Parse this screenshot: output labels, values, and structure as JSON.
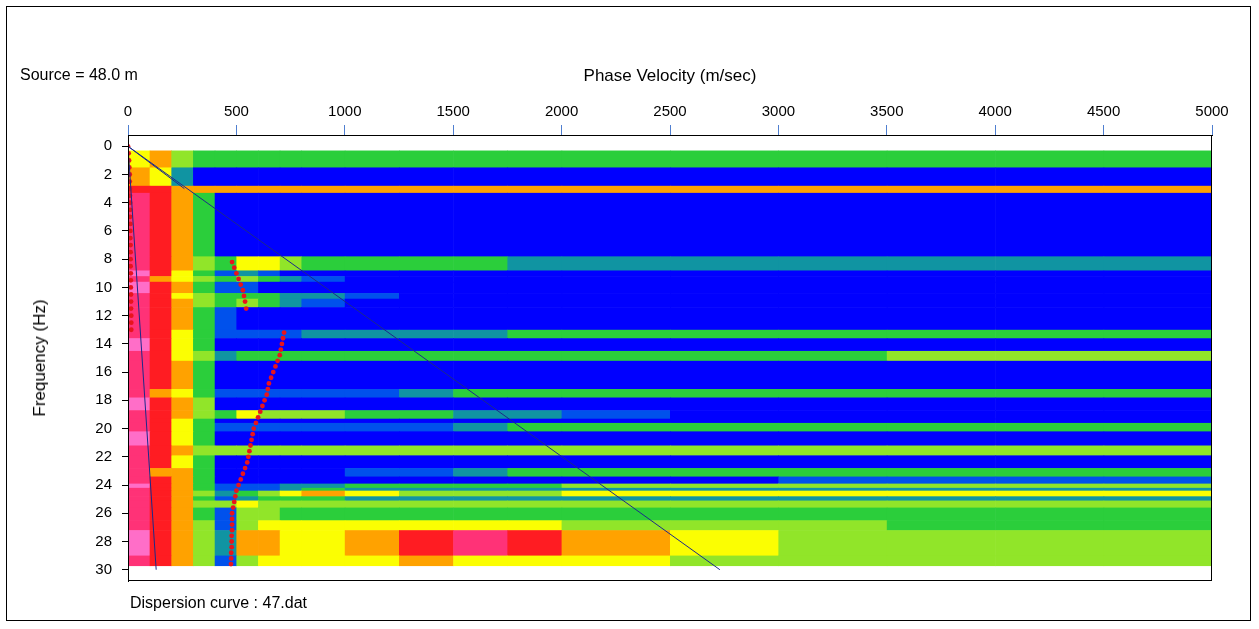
{
  "chart_data": {
    "type": "heatmap",
    "title": "Source = 48.0 m",
    "x_label": "Phase Velocity (m/sec)",
    "y_label": "Frequency (Hz)",
    "annotations": [
      "Dispersion curve : 47.dat"
    ],
    "xlim": [
      0,
      5000
    ],
    "xticks": [
      0,
      500,
      1000,
      1500,
      2000,
      2500,
      3000,
      3500,
      4000,
      4500,
      5000
    ],
    "ylim": [
      -0.8,
      30.8
    ],
    "yticks": [
      0,
      2,
      4,
      6,
      8,
      10,
      12,
      14,
      16,
      18,
      20,
      22,
      24,
      26,
      28,
      30
    ],
    "grid": false,
    "heatmap": {
      "zlim": [
        0,
        9
      ],
      "x_edges": [
        0,
        100,
        200,
        300,
        400,
        500,
        600,
        700,
        800,
        1000,
        1250,
        1500,
        1750,
        2000,
        2500,
        3000,
        3500,
        4000,
        4500,
        5000
      ],
      "y_edges": [
        0.3,
        1.5,
        2.8,
        3.3,
        7.8,
        8.8,
        9.2,
        9.6,
        10.4,
        10.8,
        11.4,
        13.0,
        13.6,
        14.5,
        15.2,
        17.2,
        17.8,
        18.7,
        19.3,
        19.6,
        20.2,
        21.2,
        21.9,
        22.8,
        23.4,
        23.9,
        24.2,
        24.4,
        24.8,
        25.1,
        25.6,
        26.5,
        27.2,
        29.0,
        29.7
      ],
      "cells": [
        [
          5,
          6,
          4,
          3,
          3,
          3,
          3,
          3,
          3,
          3,
          3,
          3,
          3,
          3,
          3,
          3,
          3,
          3,
          3
        ],
        [
          6,
          5,
          2,
          0,
          0,
          0,
          0,
          0,
          0,
          0,
          0,
          0,
          0,
          0,
          0,
          0,
          0,
          0,
          0
        ],
        [
          7,
          7,
          6,
          6,
          6,
          6,
          6,
          6,
          6,
          6,
          6,
          6,
          6,
          6,
          6,
          6,
          6,
          6,
          6
        ],
        [
          8,
          7,
          6,
          3,
          0,
          0,
          0,
          0,
          0,
          0,
          0,
          0,
          0,
          0,
          0,
          0,
          0,
          0,
          0
        ],
        [
          8,
          7,
          6,
          4,
          3,
          5,
          5,
          4,
          3,
          3,
          3,
          3,
          2,
          2,
          2,
          2,
          2,
          2,
          2
        ],
        [
          9,
          7,
          5,
          3,
          1,
          2,
          1,
          0,
          0,
          0,
          0,
          0,
          0,
          0,
          0,
          0,
          0,
          0,
          0
        ],
        [
          8,
          6,
          5,
          4,
          3,
          4,
          3,
          2,
          1,
          0,
          0,
          0,
          0,
          0,
          0,
          0,
          0,
          0,
          0
        ],
        [
          9,
          7,
          6,
          3,
          1,
          1,
          0,
          0,
          0,
          0,
          0,
          0,
          0,
          0,
          0,
          0,
          0,
          0,
          0
        ],
        [
          8,
          7,
          5,
          4,
          3,
          3,
          3,
          2,
          2,
          1,
          0,
          0,
          0,
          0,
          0,
          0,
          0,
          0,
          0
        ],
        [
          8,
          7,
          6,
          4,
          3,
          4,
          3,
          2,
          1,
          0,
          0,
          0,
          0,
          0,
          0,
          0,
          0,
          0,
          0
        ],
        [
          8,
          7,
          6,
          3,
          1,
          0,
          0,
          0,
          0,
          0,
          0,
          0,
          0,
          0,
          0,
          0,
          0,
          0,
          0
        ],
        [
          8,
          7,
          5,
          3,
          1,
          1,
          1,
          1,
          2,
          2,
          2,
          2,
          3,
          3,
          3,
          3,
          3,
          3,
          3
        ],
        [
          9,
          7,
          5,
          3,
          0,
          0,
          0,
          0,
          0,
          0,
          0,
          0,
          0,
          0,
          0,
          0,
          0,
          0,
          0
        ],
        [
          8,
          7,
          5,
          4,
          2,
          3,
          3,
          3,
          3,
          3,
          3,
          3,
          3,
          3,
          3,
          3,
          4,
          4,
          4
        ],
        [
          8,
          7,
          6,
          3,
          0,
          0,
          0,
          0,
          0,
          0,
          0,
          0,
          0,
          0,
          0,
          0,
          0,
          0,
          0
        ],
        [
          8,
          6,
          5,
          3,
          1,
          1,
          1,
          1,
          1,
          1,
          2,
          3,
          3,
          3,
          3,
          3,
          3,
          3,
          3
        ],
        [
          9,
          7,
          6,
          4,
          0,
          0,
          0,
          0,
          0,
          0,
          0,
          0,
          0,
          0,
          0,
          0,
          0,
          0,
          0
        ],
        [
          8,
          7,
          6,
          4,
          3,
          5,
          4,
          4,
          4,
          3,
          3,
          2,
          2,
          1,
          0,
          0,
          0,
          0,
          0
        ],
        [
          8,
          7,
          5,
          3,
          0,
          0,
          0,
          0,
          0,
          0,
          0,
          0,
          0,
          0,
          0,
          0,
          0,
          0,
          0
        ],
        [
          8,
          7,
          5,
          3,
          1,
          1,
          1,
          1,
          1,
          1,
          1,
          2,
          3,
          3,
          3,
          3,
          3,
          3,
          3
        ],
        [
          9,
          7,
          5,
          3,
          0,
          0,
          0,
          0,
          0,
          0,
          0,
          0,
          0,
          0,
          0,
          0,
          0,
          0,
          0
        ],
        [
          8,
          7,
          6,
          4,
          4,
          4,
          4,
          4,
          4,
          4,
          4,
          4,
          4,
          4,
          4,
          4,
          4,
          4,
          4
        ],
        [
          8,
          7,
          5,
          3,
          0,
          0,
          0,
          0,
          0,
          0,
          0,
          0,
          0,
          0,
          0,
          0,
          0,
          0,
          0
        ],
        [
          8,
          6,
          6,
          3,
          0,
          0,
          0,
          0,
          0,
          1,
          1,
          2,
          3,
          3,
          3,
          3,
          3,
          3,
          3
        ],
        [
          8,
          7,
          6,
          3,
          0,
          0,
          0,
          0,
          0,
          0,
          0,
          0,
          0,
          0,
          0,
          1,
          1,
          1,
          1
        ],
        [
          9,
          7,
          6,
          3,
          1,
          1,
          1,
          2,
          2,
          3,
          3,
          3,
          3,
          4,
          4,
          4,
          4,
          4,
          4
        ],
        [
          8,
          7,
          6,
          3,
          1,
          1,
          1,
          2,
          3,
          2,
          2,
          2,
          2,
          2,
          2,
          2,
          2,
          2,
          2
        ],
        [
          8,
          7,
          6,
          4,
          2,
          3,
          4,
          5,
          6,
          5,
          4,
          4,
          4,
          5,
          5,
          5,
          5,
          5,
          5
        ],
        [
          8,
          7,
          6,
          3,
          1,
          2,
          3,
          3,
          3,
          2,
          2,
          2,
          2,
          2,
          2,
          2,
          2,
          2,
          2
        ],
        [
          8,
          7,
          6,
          4,
          4,
          5,
          4,
          4,
          4,
          4,
          4,
          4,
          4,
          4,
          4,
          4,
          4,
          4,
          4
        ],
        [
          8,
          7,
          6,
          3,
          1,
          4,
          4,
          3,
          3,
          3,
          3,
          3,
          3,
          3,
          3,
          3,
          3,
          3,
          3
        ],
        [
          8,
          7,
          6,
          4,
          1,
          4,
          5,
          5,
          5,
          5,
          5,
          5,
          5,
          4,
          4,
          4,
          3,
          3,
          3
        ],
        [
          9,
          7,
          6,
          4,
          2,
          6,
          6,
          5,
          5,
          6,
          7,
          8,
          7,
          6,
          5,
          4,
          4,
          4,
          4
        ],
        [
          8,
          7,
          6,
          4,
          1,
          4,
          5,
          5,
          5,
          5,
          6,
          5,
          5,
          5,
          4,
          4,
          4,
          4,
          4
        ]
      ]
    },
    "series": [
      {
        "type": "line",
        "color": "#1b2a8a",
        "line_style": "solid",
        "x": [
          0,
          2730
        ],
        "values": [
          0,
          30
        ]
      },
      {
        "type": "line",
        "color": "#1b2a8a",
        "line_style": "solid",
        "x": [
          0,
          260
        ],
        "values": [
          0,
          3
        ]
      },
      {
        "type": "line",
        "color": "#1b2a8a",
        "line_style": "solid",
        "x": [
          0,
          130
        ],
        "values": [
          0,
          30
        ]
      },
      {
        "type": "scatter",
        "color": "#e8141c",
        "marker": "circle",
        "x": [
          0,
          3,
          5,
          6,
          8,
          8,
          9,
          9,
          10,
          10,
          10,
          11,
          11,
          11,
          12,
          12,
          12,
          12,
          13,
          13,
          13,
          14,
          14,
          14,
          15,
          15,
          15
        ],
        "values": [
          0,
          0.5,
          1,
          1.5,
          2,
          2.5,
          3,
          3.5,
          4,
          4.5,
          5,
          5.5,
          6,
          6.5,
          7,
          7.5,
          8,
          8.5,
          9,
          9.5,
          10,
          10.5,
          11,
          11.5,
          12,
          12.5,
          13
        ]
      },
      {
        "type": "scatter",
        "color": "#e8141c",
        "marker": "circle",
        "x": [
          480,
          490,
          500,
          510,
          520,
          530,
          535,
          540,
          545
        ],
        "values": [
          8.2,
          8.6,
          9.0,
          9.4,
          9.8,
          10.2,
          10.6,
          11.0,
          11.5
        ]
      },
      {
        "type": "scatter",
        "color": "#e8141c",
        "marker": "circle",
        "x": [
          720,
          715,
          710,
          705,
          700,
          690,
          680,
          670,
          660,
          650,
          645,
          640,
          630,
          620,
          610,
          600,
          590,
          580,
          575,
          570,
          565,
          560,
          555,
          550,
          540,
          530,
          520,
          510,
          500,
          495,
          490,
          485,
          480,
          480,
          480,
          480,
          478,
          478,
          478,
          476,
          476,
          475
        ],
        "values": [
          13.2,
          13.6,
          14.0,
          14.4,
          14.8,
          15.2,
          15.6,
          16.0,
          16.4,
          16.8,
          17.2,
          17.6,
          18.0,
          18.4,
          18.8,
          19.2,
          19.6,
          20.0,
          20.4,
          20.8,
          21.2,
          21.6,
          22.0,
          22.4,
          22.8,
          23.2,
          23.6,
          24.0,
          24.4,
          24.8,
          25.2,
          25.6,
          26.0,
          26.4,
          26.8,
          27.2,
          27.6,
          28.0,
          28.4,
          28.8,
          29.2,
          29.6
        ]
      }
    ]
  }
}
